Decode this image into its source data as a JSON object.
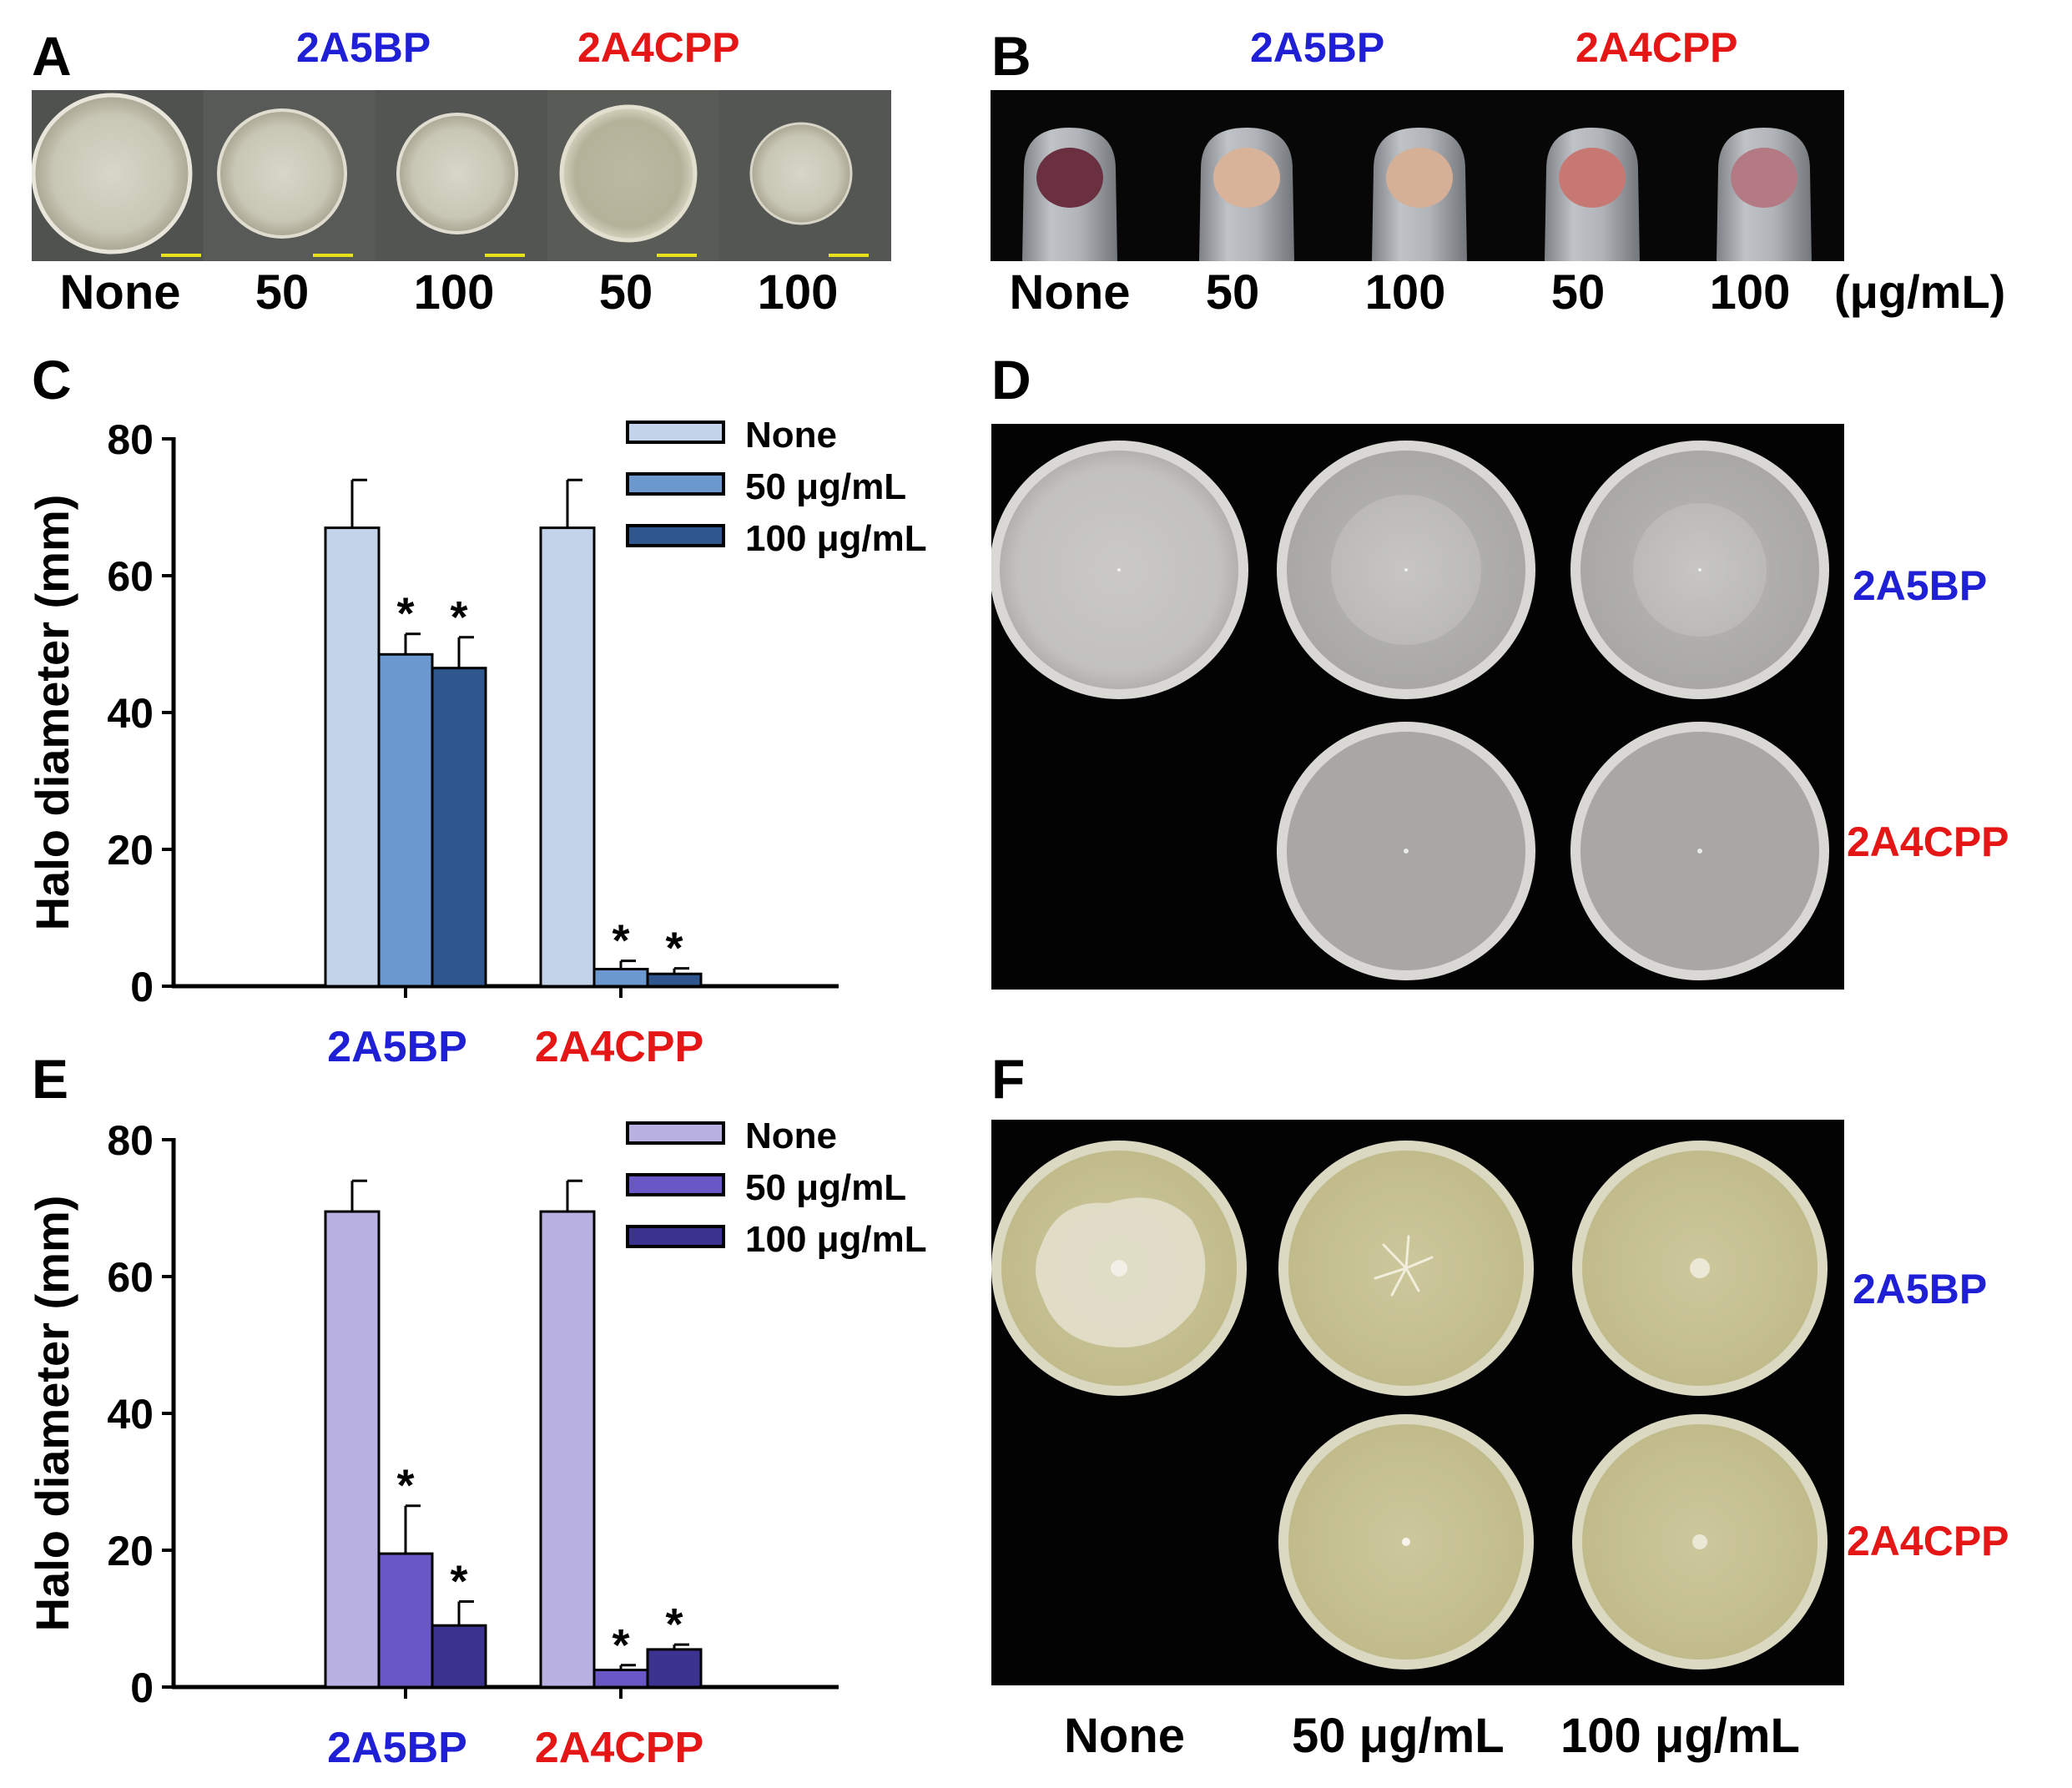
{
  "panels": {
    "A": {
      "label": "A",
      "header_left": "2A5BP",
      "header_right": "2A4CPP",
      "captions": [
        "None",
        "50",
        "100",
        "50",
        "100"
      ]
    },
    "B": {
      "label": "B",
      "header_left": "2A5BP",
      "header_right": "2A4CPP",
      "captions": [
        "None",
        "50",
        "100",
        "50",
        "100"
      ],
      "unit": "(μg/mL)"
    },
    "C": {
      "label": "C"
    },
    "D": {
      "label": "D",
      "row_labels": [
        "2A5BP",
        "2A4CPP"
      ]
    },
    "E": {
      "label": "E"
    },
    "F": {
      "label": "F",
      "row_labels": [
        "2A5BP",
        "2A4CPP"
      ],
      "captions": [
        "None",
        "50 μg/mL",
        "100 μg/mL"
      ]
    }
  },
  "colors": {
    "blue_text": "#1f1fd6",
    "red_text": "#e41616",
    "C_none": "#c3d3ea",
    "C_50": "#6a98cf",
    "C_100": "#2f568d",
    "E_none": "#b8b1e2",
    "E_50": "#6a57c6",
    "E_100": "#3c3390"
  },
  "chart_data": [
    {
      "panel": "C",
      "type": "bar",
      "ylabel": "Halo diameter (mm)",
      "ylim": [
        0,
        80
      ],
      "yticks": [
        0,
        20,
        40,
        60,
        80
      ],
      "categories": [
        "2A5BP",
        "2A4CPP"
      ],
      "category_colors": [
        "#1f1fd6",
        "#e41616"
      ],
      "legend": [
        "None",
        "50 μg/mL",
        "100 μg/mL"
      ],
      "series": [
        {
          "name": "None",
          "values": [
            67,
            67
          ],
          "errors": [
            7,
            7
          ],
          "significant": [
            false,
            false
          ]
        },
        {
          "name": "50 μg/mL",
          "values": [
            48.5,
            2.5
          ],
          "errors": [
            3,
            1.2
          ],
          "significant": [
            true,
            true
          ]
        },
        {
          "name": "100 μg/mL",
          "values": [
            46.5,
            1.8
          ],
          "errors": [
            4.5,
            0.8
          ],
          "significant": [
            true,
            true
          ]
        }
      ],
      "significance_marker": "*"
    },
    {
      "panel": "E",
      "type": "bar",
      "ylabel": "Halo diameter (mm)",
      "ylim": [
        0,
        80
      ],
      "yticks": [
        0,
        20,
        40,
        60,
        80
      ],
      "categories": [
        "2A5BP",
        "2A4CPP"
      ],
      "category_colors": [
        "#1f1fd6",
        "#e41616"
      ],
      "legend": [
        "None",
        "50 μg/mL",
        "100 μg/mL"
      ],
      "series": [
        {
          "name": "None",
          "values": [
            69.5,
            69.5
          ],
          "errors": [
            4.5,
            4.5
          ],
          "significant": [
            false,
            false
          ]
        },
        {
          "name": "50 μg/mL",
          "values": [
            19.5,
            2.5
          ],
          "errors": [
            7,
            0.7
          ],
          "significant": [
            true,
            true
          ]
        },
        {
          "name": "100 μg/mL",
          "values": [
            9,
            5.5
          ],
          "errors": [
            3.5,
            0.7
          ],
          "significant": [
            true,
            true
          ]
        }
      ],
      "significance_marker": "*"
    }
  ]
}
